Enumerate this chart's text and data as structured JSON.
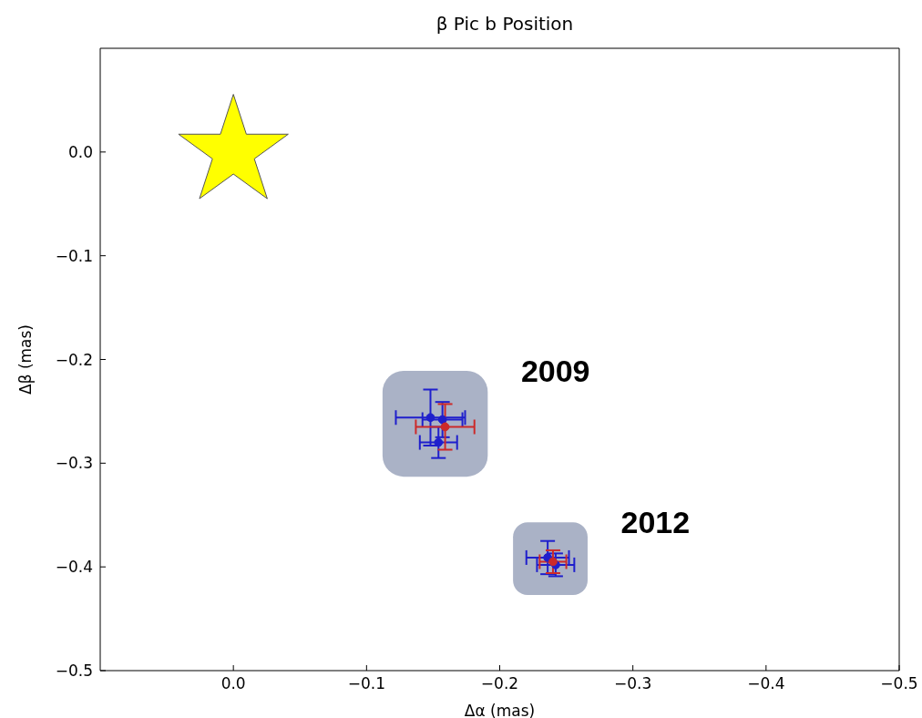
{
  "chart_data": {
    "type": "scatter",
    "title": "β Pic b Position",
    "xlabel": "Δα (mas)",
    "ylabel": "Δβ (mas)",
    "xlim": [
      0.1,
      -0.5
    ],
    "xticks": [
      {
        "value": 0,
        "label": "0.0"
      },
      {
        "value": -0.1,
        "label": "−0.1"
      },
      {
        "value": -0.2,
        "label": "−0.2"
      },
      {
        "value": -0.3,
        "label": "−0.3"
      },
      {
        "value": -0.4,
        "label": "−0.4"
      },
      {
        "value": -0.5,
        "label": "−0.5"
      }
    ],
    "ylim": [
      -0.5,
      0.1
    ],
    "yticks": [
      {
        "value": 0,
        "label": "0.0"
      },
      {
        "value": -0.1,
        "label": "−0.1"
      },
      {
        "value": -0.2,
        "label": "−0.2"
      },
      {
        "value": -0.3,
        "label": "−0.3"
      },
      {
        "value": -0.4,
        "label": "−0.4"
      },
      {
        "value": -0.5,
        "label": "−0.5"
      }
    ],
    "grid": false,
    "series": [
      {
        "color": "#1f1fcc",
        "marker": "circle",
        "x": [
          -0.148,
          -0.157,
          -0.154,
          -0.236,
          -0.242
        ],
        "values": [
          -0.256,
          -0.258,
          -0.28,
          -0.391,
          -0.398
        ],
        "xerrors": [
          0.026,
          0.015,
          0.014,
          0.016,
          0.014
        ],
        "errors": [
          0.027,
          0.017,
          0.015,
          0.016,
          0.011
        ]
      },
      {
        "color": "#cc2a2a",
        "marker": "circle",
        "x": [
          -0.159,
          -0.24
        ],
        "values": [
          -0.265,
          -0.395
        ],
        "xerrors": [
          0.022,
          0.01
        ],
        "errors": [
          0.022,
          0.011
        ]
      },
      {
        "color": "#ffff00",
        "marker": "star",
        "x": [
          0
        ],
        "values": [
          0
        ]
      }
    ],
    "annotations": [
      "2009",
      "2012"
    ]
  }
}
